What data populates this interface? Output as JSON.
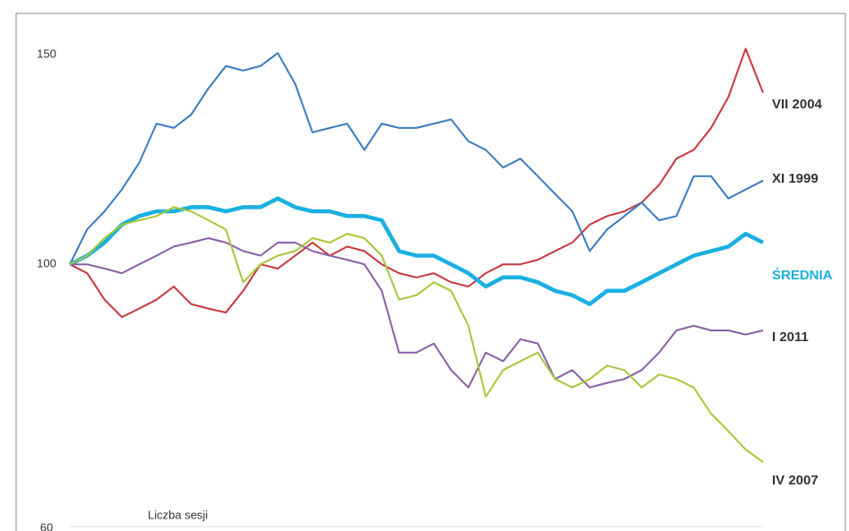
{
  "chart_data": {
    "type": "line",
    "x_label": "Liczba sesji",
    "x": [
      0,
      5,
      10,
      15,
      20,
      25,
      30,
      35,
      40,
      45,
      50,
      55,
      60,
      65,
      70,
      75,
      80,
      85,
      90,
      95,
      100,
      105,
      110,
      115,
      120,
      125,
      130,
      135,
      140,
      145,
      150,
      155,
      160,
      165,
      170,
      175,
      180,
      185,
      190,
      195,
      200
    ],
    "xlim": [
      0,
      200
    ],
    "ylim": [
      60,
      160
    ],
    "yticks": [
      60,
      100,
      150
    ],
    "yscale": "log",
    "grid": false,
    "series": [
      {
        "name": "VII 2004",
        "color": "#c8373f",
        "width": 2,
        "values": [
          100,
          98.3,
          93.4,
          90.3,
          91.8,
          93.4,
          95.8,
          92.6,
          91.8,
          91.1,
          95.0,
          100,
          99.2,
          101.7,
          104.3,
          101.7,
          103.5,
          102.6,
          100,
          98.3,
          97.5,
          98.3,
          96.6,
          95.8,
          98.3,
          100,
          100,
          100.9,
          102.6,
          104.3,
          108,
          109.8,
          110.8,
          112.7,
          116.6,
          122.7,
          124.8,
          130.2,
          138.2,
          151.8,
          139.4
        ]
      },
      {
        "name": "XI 1999",
        "color": "#3a7bbf",
        "width": 2,
        "values": [
          100,
          107,
          110.8,
          115.6,
          121.7,
          131.3,
          130.2,
          133.6,
          140.6,
          146.8,
          145.5,
          146.8,
          150.5,
          141.8,
          129.1,
          130.2,
          131.3,
          124.8,
          131.3,
          130.2,
          130.2,
          131.3,
          132.4,
          126.9,
          124.8,
          120.6,
          122.7,
          118.6,
          114.6,
          110.8,
          102.6,
          107,
          109.8,
          112.7,
          108.9,
          109.8,
          118.6,
          118.6,
          113.6,
          115.6,
          117.6
        ]
      },
      {
        "name": "ŚREDNIA",
        "color": "#1ab0e0",
        "width": 4.5,
        "values": [
          100,
          101.7,
          104.3,
          108,
          109.8,
          110.8,
          110.8,
          111.7,
          111.7,
          110.8,
          111.7,
          111.7,
          113.6,
          111.7,
          110.8,
          110.8,
          109.8,
          109.8,
          108.9,
          102.6,
          101.7,
          101.7,
          100,
          98.3,
          95.8,
          97.5,
          97.5,
          96.6,
          95.0,
          94.2,
          92.6,
          95.0,
          95.0,
          96.6,
          98.3,
          100,
          101.7,
          102.6,
          103.5,
          106.1,
          104.3
        ]
      },
      {
        "name": "I 2011",
        "color": "#8a5fa8",
        "width": 2,
        "values": [
          100,
          100,
          99.2,
          98.3,
          100,
          101.7,
          103.5,
          104.3,
          105.2,
          104.3,
          102.6,
          101.7,
          104.3,
          104.3,
          102.6,
          101.7,
          100.9,
          100,
          95.0,
          84.3,
          84.3,
          85.8,
          81.5,
          78.8,
          84.3,
          82.9,
          86.5,
          85.8,
          80.1,
          81.5,
          78.8,
          79.5,
          80.1,
          81.5,
          84.3,
          88.0,
          88.8,
          88.0,
          88.0,
          87.3,
          88.0
        ]
      },
      {
        "name": "IV 2007",
        "color": "#a9c63a",
        "width": 2,
        "values": [
          100,
          101.7,
          105.2,
          108,
          108.9,
          109.8,
          111.7,
          110.8,
          108.9,
          107,
          96.6,
          100,
          101.7,
          102.6,
          105.2,
          104.3,
          106.1,
          105.2,
          101.7,
          93.4,
          94.2,
          96.6,
          95.0,
          88.8,
          77.4,
          81.5,
          82.9,
          84.3,
          80.1,
          78.8,
          80.1,
          82.2,
          81.5,
          78.8,
          80.8,
          80.1,
          78.8,
          74.9,
          72.4,
          69.9,
          68.2
        ]
      }
    ]
  }
}
